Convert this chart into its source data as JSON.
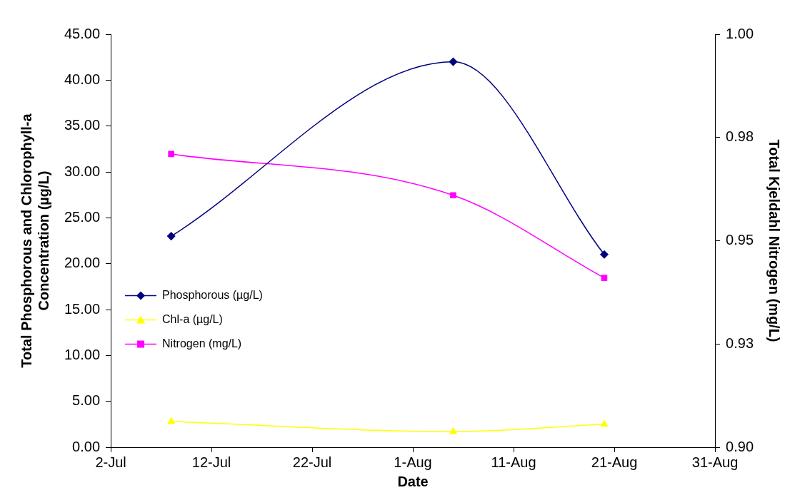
{
  "chart_data": {
    "type": "line",
    "xlabel": "Date",
    "ylabel": "Total Phosphorous and Chlorophyll-a Concentration (µg/L)",
    "y2label": "Total Kjeldahl Nitrogen (mg/L)",
    "x": [
      "--07-08",
      "--08-05",
      "--08-20"
    ],
    "series": [
      {
        "name": "Phosphorous (µg/L)",
        "color": "#000080",
        "marker": "diamond",
        "values": [
          23.0,
          42.0,
          21.0
        ]
      },
      {
        "name": "Chl-a (µg/L)",
        "color": "#ffff00",
        "marker": "triangle",
        "values": [
          2.8,
          1.7,
          2.5
        ]
      },
      {
        "name": "Nitrogen (mg/L)",
        "color": "#ff00ff",
        "marker": "square",
        "axis": "y2",
        "values": [
          0.971,
          0.961,
          0.941
        ]
      }
    ],
    "xlim": [
      "--07-02",
      "--08-31"
    ],
    "xticks": [
      {
        "value": "--07-02",
        "label": "2-Jul"
      },
      {
        "value": "--07-12",
        "label": "12-Jul"
      },
      {
        "value": "--07-22",
        "label": "22-Jul"
      },
      {
        "value": "--08-01",
        "label": "1-Aug"
      },
      {
        "value": "--08-11",
        "label": "11-Aug"
      },
      {
        "value": "--08-21",
        "label": "21-Aug"
      },
      {
        "value": "--08-31",
        "label": "31-Aug"
      }
    ],
    "ylim": [
      0,
      45
    ],
    "yticks": [
      {
        "value": 0,
        "label": "0.00"
      },
      {
        "value": 5,
        "label": "5.00"
      },
      {
        "value": 10,
        "label": "10.00"
      },
      {
        "value": 15,
        "label": "15.00"
      },
      {
        "value": 20,
        "label": "20.00"
      },
      {
        "value": 25,
        "label": "25.00"
      },
      {
        "value": 30,
        "label": "30.00"
      },
      {
        "value": 35,
        "label": "35.00"
      },
      {
        "value": 40,
        "label": "40.00"
      },
      {
        "value": 45,
        "label": "45.00"
      }
    ],
    "y2lim": [
      0.9,
      1.0
    ],
    "y2ticks": [
      {
        "value": 0.9,
        "label": "0.90"
      },
      {
        "value": 0.925,
        "label": "0.93"
      },
      {
        "value": 0.95,
        "label": "0.95"
      },
      {
        "value": 0.975,
        "label": "0.98"
      },
      {
        "value": 1.0,
        "label": "1.00"
      }
    ],
    "grid": false,
    "legend": "left",
    "line_style": "solid"
  }
}
